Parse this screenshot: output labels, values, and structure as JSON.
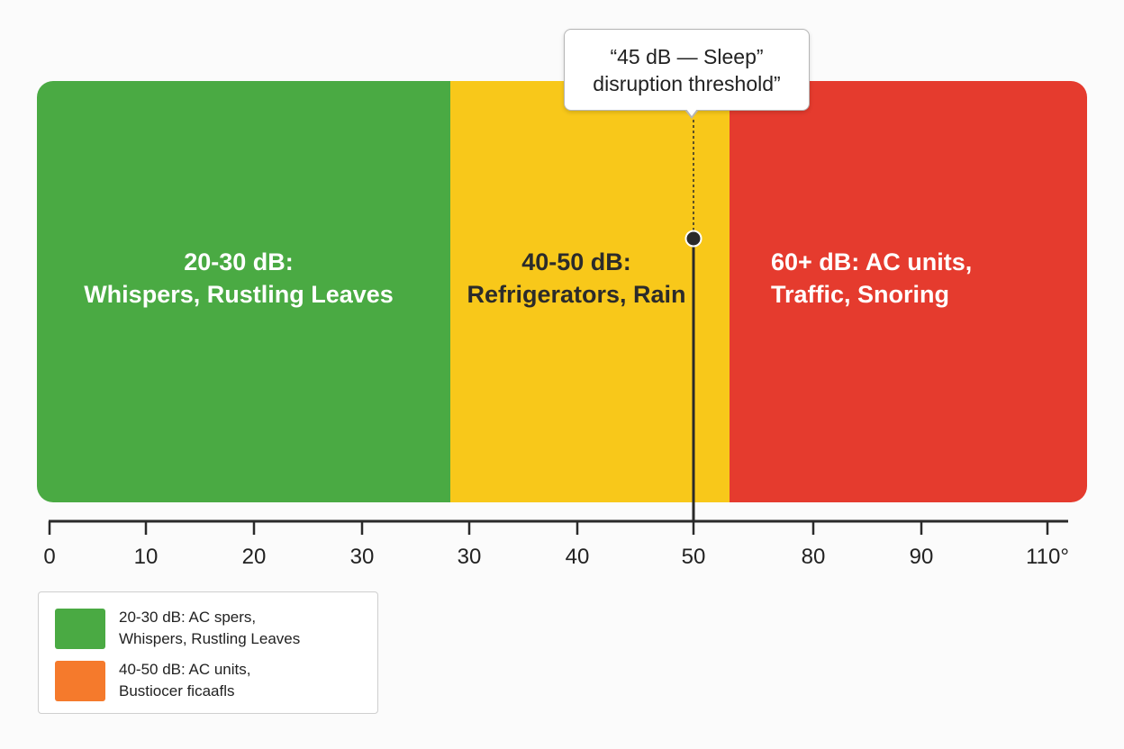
{
  "chart_data": {
    "type": "bar",
    "orientation": "horizontal-ranges",
    "title": "",
    "xlabel": "",
    "ylabel": "",
    "xlim": [
      0,
      110
    ],
    "grid": false,
    "zones": [
      {
        "name": "green",
        "color": "#4aaa43",
        "label_lines": [
          "20-30 dB:",
          "Whispers, Rustling Leaves"
        ],
        "label_color": "#ffffff"
      },
      {
        "name": "yellow",
        "color": "#f8c81a",
        "label_lines": [
          "40-50 dB:",
          "Refrigerators, Rain"
        ],
        "label_color": "#2b2b2b"
      },
      {
        "name": "red",
        "color": "#e53b2e",
        "label_lines": [
          "60+ dB: AC units,",
          "Traffic, Snoring"
        ],
        "label_color": "#ffffff"
      }
    ],
    "ticks": [
      "0",
      "10",
      "20",
      "30",
      "30",
      "40",
      "50",
      "80",
      "90",
      "110°"
    ],
    "marker": {
      "tick_label": "50",
      "callout_lines": [
        "“45 dB — Sleep”",
        "disruption threshold”"
      ]
    },
    "legend": {
      "placement": "bottom-left",
      "entries": [
        {
          "color": "#4aaa43",
          "lines": [
            "20-30 dB: AC spers,",
            "Whispers, Rustling Leaves"
          ]
        },
        {
          "color": "#f57a2c",
          "lines": [
            "40-50 dB: AC units,",
            "Bustiocer ficaafls"
          ]
        }
      ]
    }
  }
}
